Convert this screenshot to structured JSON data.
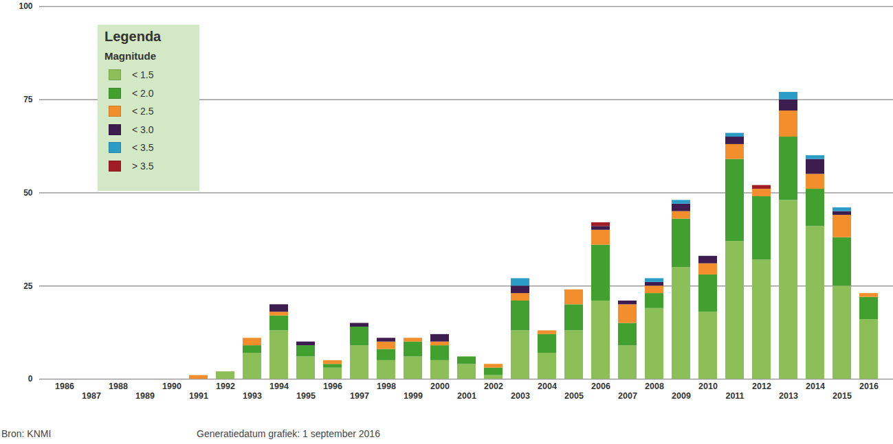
{
  "chart_data": {
    "type": "bar",
    "stacked": true,
    "grid": true,
    "legend": "top-left",
    "legend_title": "Legenda",
    "legend_subtitle": "Magnitude",
    "annotations": [
      "Bron: KNMI",
      "Generatiedatum grafiek: 1 september 2016"
    ],
    "categories": [
      "1986",
      "1987",
      "1988",
      "1989",
      "1990",
      "1991",
      "1992",
      "1993",
      "1994",
      "1995",
      "1996",
      "1997",
      "1998",
      "1999",
      "2000",
      "2001",
      "2002",
      "2003",
      "2004",
      "2005",
      "2006",
      "2007",
      "2008",
      "2009",
      "2010",
      "2011",
      "2012",
      "2013",
      "2014",
      "2015",
      "2016"
    ],
    "ylim": [
      0,
      100
    ],
    "yticks": [
      0,
      25,
      50,
      75,
      100
    ],
    "series": [
      {
        "name": "< 1.5",
        "color": "#8cbf58",
        "values": [
          0,
          0,
          0,
          0,
          0,
          0,
          2,
          7,
          13,
          6,
          3,
          9,
          5,
          6,
          5,
          4,
          1,
          13,
          7,
          13,
          21,
          9,
          19,
          30,
          18,
          37,
          32,
          48,
          41,
          25,
          16
        ]
      },
      {
        "name": "< 2.0",
        "color": "#42a02e",
        "values": [
          0,
          0,
          0,
          0,
          0,
          0,
          0,
          2,
          4,
          3,
          1,
          5,
          3,
          4,
          4,
          2,
          2,
          8,
          5,
          7,
          15,
          6,
          4,
          13,
          10,
          22,
          17,
          17,
          10,
          13,
          6
        ]
      },
      {
        "name": "< 2.5",
        "color": "#f28e2b",
        "values": [
          0,
          0,
          0,
          0,
          0,
          1,
          0,
          2,
          1,
          0,
          1,
          0,
          2,
          1,
          1,
          0,
          1,
          2,
          1,
          4,
          4,
          5,
          2,
          2,
          3,
          4,
          2,
          7,
          4,
          6,
          1
        ]
      },
      {
        "name": "< 3.0",
        "color": "#3d1c4f",
        "values": [
          0,
          0,
          0,
          0,
          0,
          0,
          0,
          0,
          2,
          1,
          0,
          1,
          1,
          0,
          2,
          0,
          0,
          2,
          0,
          0,
          1,
          1,
          1,
          2,
          2,
          2,
          0,
          3,
          4,
          1,
          0
        ]
      },
      {
        "name": "< 3.5",
        "color": "#2b9cc6",
        "values": [
          0,
          0,
          0,
          0,
          0,
          0,
          0,
          0,
          0,
          0,
          0,
          0,
          0,
          0,
          0,
          0,
          0,
          2,
          0,
          0,
          0,
          0,
          1,
          1,
          0,
          1,
          0,
          2,
          1,
          1,
          0
        ]
      },
      {
        "name": "> 3.5",
        "color": "#a11d26",
        "values": [
          0,
          0,
          0,
          0,
          0,
          0,
          0,
          0,
          0,
          0,
          0,
          0,
          0,
          0,
          0,
          0,
          0,
          0,
          0,
          0,
          1,
          0,
          0,
          0,
          0,
          0,
          1,
          0,
          0,
          0,
          0
        ]
      }
    ]
  }
}
